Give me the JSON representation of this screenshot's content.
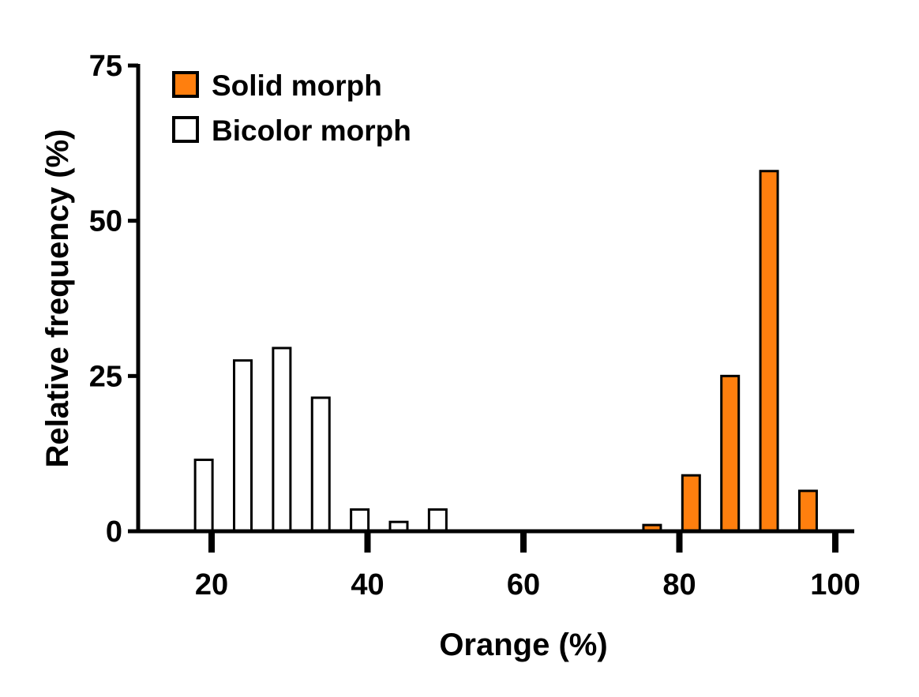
{
  "chart_data": {
    "type": "bar",
    "xlabel": "Orange (%)",
    "ylabel": "Relative frequency (%)",
    "xlim": [
      10,
      105
    ],
    "ylim": [
      0,
      75
    ],
    "xticks": [
      "20",
      "40",
      "60",
      "80",
      "100"
    ],
    "yticks": [
      "0",
      "25",
      "50",
      "75"
    ],
    "bin_width": 5,
    "legend_position": "top-left",
    "series": [
      {
        "name": "Solid morph",
        "color": "#ff7f0e",
        "x": [
          76.5,
          81.5,
          86.5,
          91.5,
          96.5
        ],
        "values": [
          1,
          9,
          25,
          58,
          6.5
        ]
      },
      {
        "name": "Bicolor morph",
        "color": "#ffffff",
        "x": [
          19,
          24,
          29,
          34,
          39,
          44,
          49
        ],
        "values": [
          11.5,
          27.5,
          29.5,
          21.5,
          3.5,
          1.5,
          3.5
        ]
      }
    ]
  }
}
